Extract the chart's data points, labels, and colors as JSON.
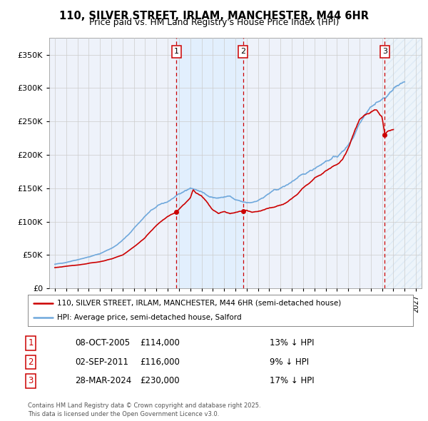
{
  "title": "110, SILVER STREET, IRLAM, MANCHESTER, M44 6HR",
  "subtitle": "Price paid vs. HM Land Registry's House Price Index (HPI)",
  "legend_line1": "110, SILVER STREET, IRLAM, MANCHESTER, M44 6HR (semi-detached house)",
  "legend_line2": "HPI: Average price, semi-detached house, Salford",
  "footer": "Contains HM Land Registry data © Crown copyright and database right 2025.\nThis data is licensed under the Open Government Licence v3.0.",
  "transactions": [
    {
      "num": 1,
      "date": "08-OCT-2005",
      "price": 114000,
      "hpi_diff": "13% ↓ HPI",
      "year": 2005.77
    },
    {
      "num": 2,
      "date": "02-SEP-2011",
      "price": 116000,
      "hpi_diff": "9% ↓ HPI",
      "year": 2011.67
    },
    {
      "num": 3,
      "date": "28-MAR-2024",
      "price": 230000,
      "hpi_diff": "17% ↓ HPI",
      "year": 2024.24
    }
  ],
  "hpi_color": "#6fa8dc",
  "price_color": "#cc0000",
  "shade_color": "#ddeeff",
  "background_color": "#eef2fa",
  "grid_color": "#cccccc",
  "ylim": [
    0,
    375000
  ],
  "yticks": [
    0,
    50000,
    100000,
    150000,
    200000,
    250000,
    300000,
    350000
  ],
  "xlim_start": 1994.5,
  "xlim_end": 2027.5,
  "fig_width": 6.0,
  "fig_height": 5.9,
  "dpi": 100
}
